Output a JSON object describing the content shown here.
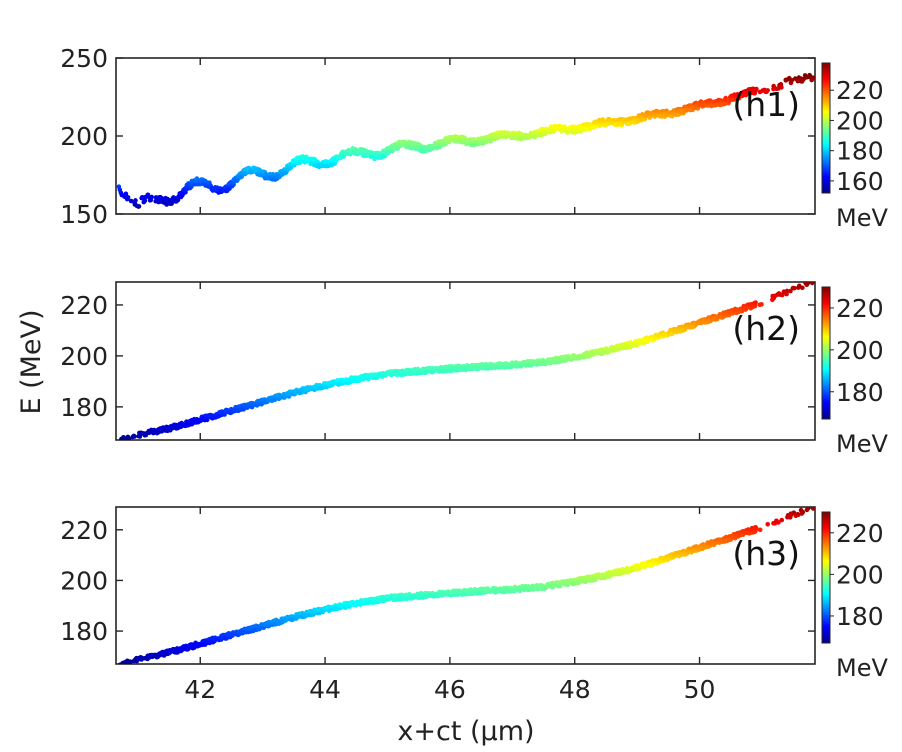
{
  "chart_data": {
    "type": "scatter",
    "xlabel": "x+ct (μm)",
    "ylabel": "E (MeV)",
    "xlim": [
      40.65,
      51.85
    ],
    "xticks": [
      42,
      44,
      46,
      48,
      50
    ],
    "colormap": "jet",
    "panels": [
      {
        "tag": "(h1)",
        "ylim": [
          150,
          250
        ],
        "yticks": [
          150,
          200,
          250
        ],
        "colorbar": {
          "clim": [
            152,
            238
          ],
          "ticks": [
            160,
            180,
            200,
            220
          ],
          "unit": "MeV"
        },
        "trend": [
          [
            40.7,
            171
          ],
          [
            41.0,
            152
          ],
          [
            41.4,
            162
          ],
          [
            41.8,
            165
          ],
          [
            42.5,
            171
          ],
          [
            43.0,
            176
          ],
          [
            44.0,
            185
          ],
          [
            45.0,
            191
          ],
          [
            46.0,
            196
          ],
          [
            47.0,
            200
          ],
          [
            48.0,
            205
          ],
          [
            49.0,
            211
          ],
          [
            50.0,
            219
          ],
          [
            50.5,
            224
          ],
          [
            51.0,
            230
          ],
          [
            51.8,
            238
          ]
        ],
        "oscillation": {
          "amplitude_start": 9,
          "amplitude_end": 1.5,
          "period_start": 0.85,
          "period_end": 0.8
        },
        "band_width": 4
      },
      {
        "tag": "(h2)",
        "ylim": [
          167,
          229
        ],
        "yticks": [
          180,
          200,
          220
        ],
        "colorbar": {
          "clim": [
            167,
            230
          ],
          "ticks": [
            180,
            200,
            220
          ],
          "unit": "MeV"
        },
        "trend": [
          [
            40.7,
            167
          ],
          [
            41.0,
            169
          ],
          [
            41.5,
            171.5
          ],
          [
            42.0,
            175
          ],
          [
            42.5,
            178.5
          ],
          [
            43.0,
            182
          ],
          [
            43.5,
            185.5
          ],
          [
            44.0,
            188.5
          ],
          [
            44.5,
            191
          ],
          [
            45.0,
            193
          ],
          [
            46.0,
            195
          ],
          [
            46.5,
            195.8
          ],
          [
            47.0,
            196.5
          ],
          [
            47.5,
            197.5
          ],
          [
            48.0,
            199.5
          ],
          [
            48.5,
            202
          ],
          [
            49.0,
            205
          ],
          [
            49.5,
            209
          ],
          [
            50.0,
            213
          ],
          [
            50.5,
            217
          ],
          [
            51.0,
            221
          ],
          [
            51.5,
            226
          ],
          [
            51.85,
            229
          ]
        ],
        "band_width": 1.8
      },
      {
        "tag": "(h3)",
        "ylim": [
          167,
          229
        ],
        "yticks": [
          180,
          200,
          220
        ],
        "colorbar": {
          "clim": [
            167,
            230
          ],
          "ticks": [
            180,
            200,
            220
          ],
          "unit": "MeV"
        },
        "trend": [
          [
            40.7,
            167
          ],
          [
            41.0,
            169
          ],
          [
            41.5,
            171.5
          ],
          [
            42.0,
            175
          ],
          [
            42.5,
            178.5
          ],
          [
            43.0,
            182
          ],
          [
            43.5,
            185.5
          ],
          [
            44.0,
            188.5
          ],
          [
            44.5,
            191
          ],
          [
            45.0,
            193
          ],
          [
            46.0,
            195
          ],
          [
            46.5,
            195.8
          ],
          [
            47.0,
            196.5
          ],
          [
            47.5,
            197.5
          ],
          [
            48.0,
            199.5
          ],
          [
            48.5,
            202
          ],
          [
            49.0,
            205
          ],
          [
            49.5,
            209
          ],
          [
            50.0,
            213
          ],
          [
            50.5,
            217
          ],
          [
            51.0,
            221
          ],
          [
            51.5,
            226
          ],
          [
            51.85,
            229
          ]
        ],
        "band_width": 1.8
      }
    ]
  }
}
